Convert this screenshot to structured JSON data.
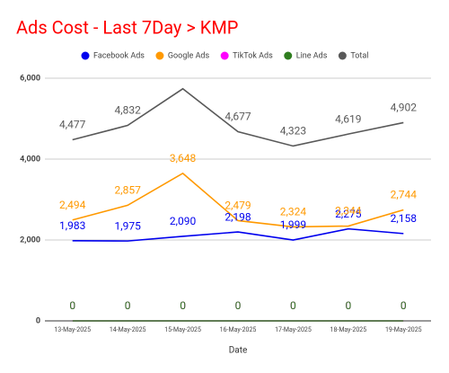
{
  "chart_data": {
    "type": "line",
    "title": "Ads Cost - Last 7Day > KMP",
    "x_label": "Date",
    "categories": [
      "13-May-2025",
      "14-May-2025",
      "15-May-2025",
      "16-May-2025",
      "17-May-2025",
      "18-May-2025",
      "19-May-2025"
    ],
    "series": [
      {
        "name": "Facebook Ads",
        "color": "#0000ee",
        "values": [
          1983,
          1975,
          2090,
          2198,
          1999,
          2275,
          2158
        ],
        "value_labels": [
          "1,983",
          "1,975",
          "2,090",
          "2,198",
          "1,999",
          "2,275",
          "2,158"
        ]
      },
      {
        "name": "Google Ads",
        "color": "#ff9900",
        "values": [
          2494,
          2857,
          3648,
          2479,
          2324,
          2344,
          2744
        ],
        "value_labels": [
          "2,494",
          "2,857",
          "3,648",
          "2,479",
          "2,324",
          "2,344",
          "2,744"
        ]
      },
      {
        "name": "TikTok Ads",
        "color": "#ff00ff",
        "values": [
          0,
          0,
          0,
          0,
          0,
          0,
          0
        ]
      },
      {
        "name": "Line Ads",
        "color": "#2f7d1f",
        "values": [
          0,
          0,
          0,
          0,
          0,
          0,
          0
        ]
      },
      {
        "name": "Total",
        "color": "#595959",
        "values": [
          4477,
          4832,
          5738,
          4677,
          4323,
          4619,
          4902
        ],
        "value_labels": [
          "4,477",
          "4,832",
          null,
          "4,677",
          "4,323",
          "4,619",
          "4,902"
        ]
      }
    ],
    "ylim": [
      0,
      6000
    ],
    "yticks": [
      0,
      {
        "value": 2000,
        "label": "2,000"
      },
      {
        "value": 4000,
        "label": "4,000"
      },
      {
        "value": 6000,
        "label": "6,000"
      }
    ],
    "grid": true,
    "legend": "top",
    "title_color": "#ff0000"
  }
}
